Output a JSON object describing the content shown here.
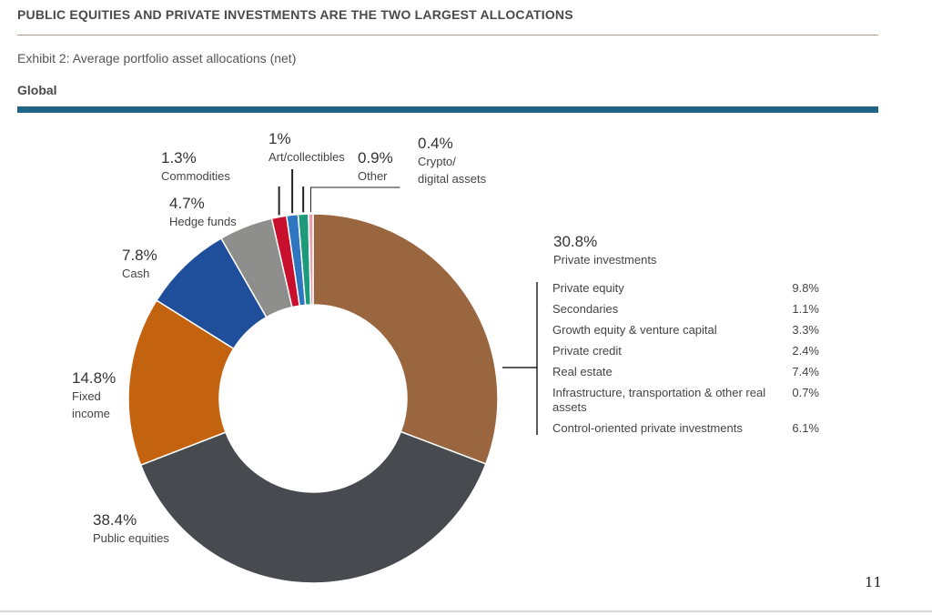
{
  "header": {
    "title": "PUBLIC EQUITIES AND PRIVATE INVESTMENTS ARE THE TWO LARGEST ALLOCATIONS",
    "exhibit": "Exhibit 2: Average portfolio asset allocations (net)",
    "region": "Global"
  },
  "page_number": "11",
  "colors": {
    "header_rule": "#1f6686",
    "thin_rule": "#b89a86"
  },
  "chart_data": {
    "type": "pie",
    "variant": "donut",
    "categories": [
      "Private investments",
      "Public equities",
      "Fixed income",
      "Cash",
      "Hedge funds",
      "Commodities",
      "Art/collectibles",
      "Other",
      "Crypto/ digital assets"
    ],
    "values": [
      30.8,
      38.4,
      14.8,
      7.8,
      4.7,
      1.3,
      1.0,
      0.9,
      0.4
    ],
    "value_labels": [
      "30.8%",
      "38.4%",
      "14.8%",
      "7.8%",
      "4.7%",
      "1.3%",
      "1%",
      "0.9%",
      "0.4%"
    ],
    "colors": [
      "#9a663f",
      "#474b4f",
      "#c4630f",
      "#1f4e9a",
      "#8e8e8c",
      "#c8102e",
      "#2f76c0",
      "#1c9a7a",
      "#e8a0b0"
    ],
    "slice_labels": [
      [
        "Private investments"
      ],
      [
        "Public equities"
      ],
      [
        "Fixed",
        "income"
      ],
      [
        "Cash"
      ],
      [
        "Hedge funds"
      ],
      [
        "Commodities"
      ],
      [
        "Art/collectibles"
      ],
      [
        "Other"
      ],
      [
        "Crypto/",
        "digital assets"
      ]
    ],
    "breakdown": {
      "of": "Private investments",
      "items": [
        {
          "name": "Private equity",
          "value": "9.8%"
        },
        {
          "name": "Secondaries",
          "value": "1.1%"
        },
        {
          "name": "Growth equity & venture capital",
          "value": "3.3%"
        },
        {
          "name": "Private credit",
          "value": "2.4%"
        },
        {
          "name": "Real estate",
          "value": "7.4%"
        },
        {
          "name": "Infrastructure, transportation & other real assets",
          "value": "0.7%"
        },
        {
          "name": "Control-oriented private investments",
          "value": "6.1%"
        }
      ]
    }
  }
}
